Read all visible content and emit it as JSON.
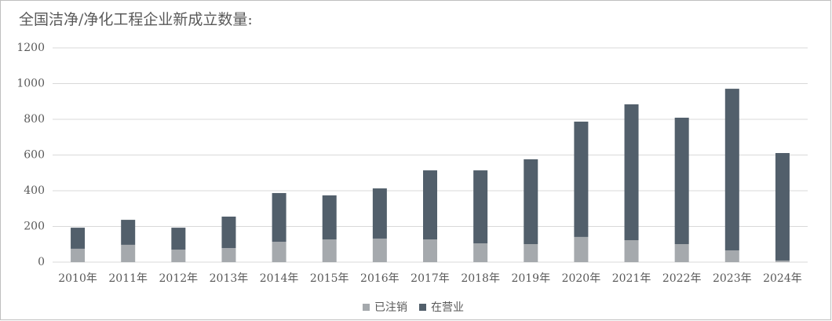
{
  "chart_data": {
    "type": "stacked_bar",
    "title": "全国洁净/净化工程企业新成立数量:",
    "categories": [
      "2010年",
      "2011年",
      "2012年",
      "2013年",
      "2014年",
      "2015年",
      "2016年",
      "2017年",
      "2018年",
      "2019年",
      "2020年",
      "2021年",
      "2022年",
      "2023年",
      "2024年"
    ],
    "series": [
      {
        "name": "已注销",
        "color": "#a5a9ad",
        "values": [
          75,
          97,
          70,
          79,
          114,
          127,
          132,
          127,
          105,
          101,
          141,
          123,
          101,
          66,
          9
        ]
      },
      {
        "name": "在营业",
        "color": "#525f6b",
        "values": [
          118,
          140,
          123,
          176,
          273,
          247,
          281,
          387,
          409,
          475,
          646,
          761,
          708,
          905,
          602
        ]
      }
    ],
    "ylim": [
      0,
      1200
    ],
    "yticks": [
      0,
      200,
      400,
      600,
      800,
      1000,
      1200
    ],
    "grid": true,
    "legend": "bottom"
  }
}
